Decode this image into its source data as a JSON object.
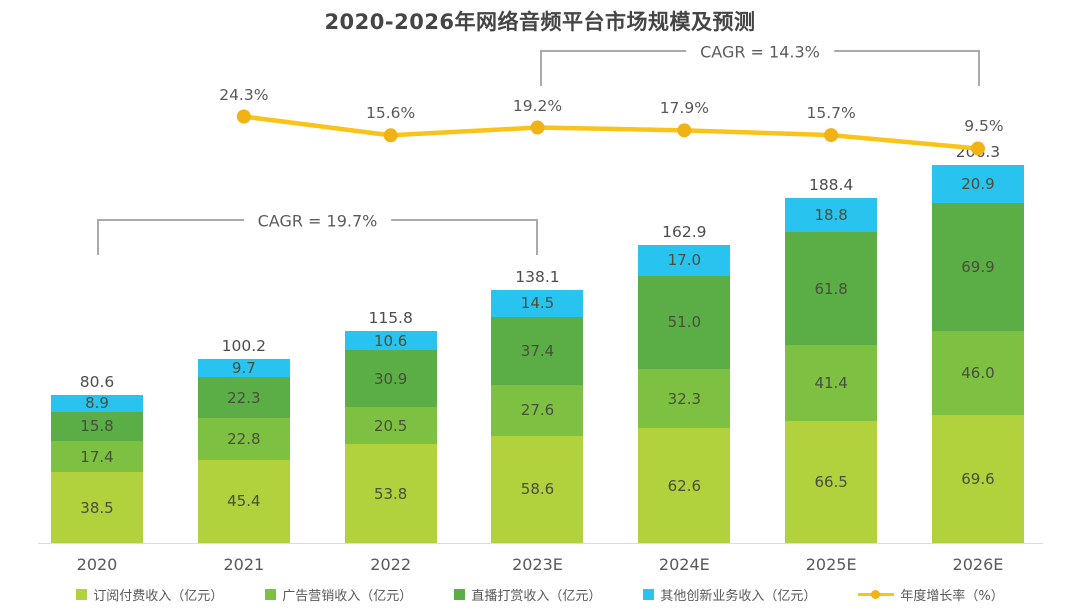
{
  "chart_data": {
    "type": "bar",
    "subtype": "stacked-bar-with-line-overlay",
    "title": "2020-2026年网络音频平台市场规模及预测",
    "categories": [
      "2020",
      "2021",
      "2022",
      "2023E",
      "2024E",
      "2025E",
      "2026E"
    ],
    "units": "亿元",
    "series": [
      {
        "name": "订阅付费收入（亿元）",
        "color": "#b1d13d",
        "values": [
          38.5,
          45.4,
          53.8,
          58.6,
          62.6,
          66.5,
          69.6
        ]
      },
      {
        "name": "广告营销收入（亿元）",
        "color": "#7ec142",
        "values": [
          17.4,
          22.8,
          20.5,
          27.6,
          32.3,
          41.4,
          46.0
        ]
      },
      {
        "name": "直播打赏收入（亿元）",
        "color": "#5bad46",
        "values": [
          15.8,
          22.3,
          30.9,
          37.4,
          51.0,
          61.8,
          69.9
        ]
      },
      {
        "name": "其他创新业务收入（亿元）",
        "color": "#29c3ef",
        "values": [
          8.9,
          9.7,
          10.6,
          14.5,
          17.0,
          18.8,
          20.9
        ]
      }
    ],
    "totals": [
      "80.6",
      "100.2",
      "115.8",
      "138.1",
      "162.9",
      "188.4",
      "206.3"
    ],
    "line_series": {
      "name": "年度增长率（%）",
      "color": "#f9c317",
      "dot_color": "#f0b215",
      "x": [
        "2021",
        "2022",
        "2023E",
        "2024E",
        "2025E",
        "2026E"
      ],
      "values": [
        24.3,
        15.6,
        19.2,
        17.9,
        15.7,
        9.5
      ],
      "labels": [
        "24.3%",
        "15.6%",
        "19.2%",
        "17.9%",
        "15.7%",
        "9.5%"
      ],
      "unit": "%"
    },
    "cagr": [
      {
        "label": "CAGR = 19.7%",
        "from": "2020",
        "to": "2023E"
      },
      {
        "label": "CAGR = 14.3%",
        "from": "2023E",
        "to": "2026E"
      }
    ],
    "legend_position": "bottom",
    "grid": false,
    "value_axis_visible": false
  }
}
